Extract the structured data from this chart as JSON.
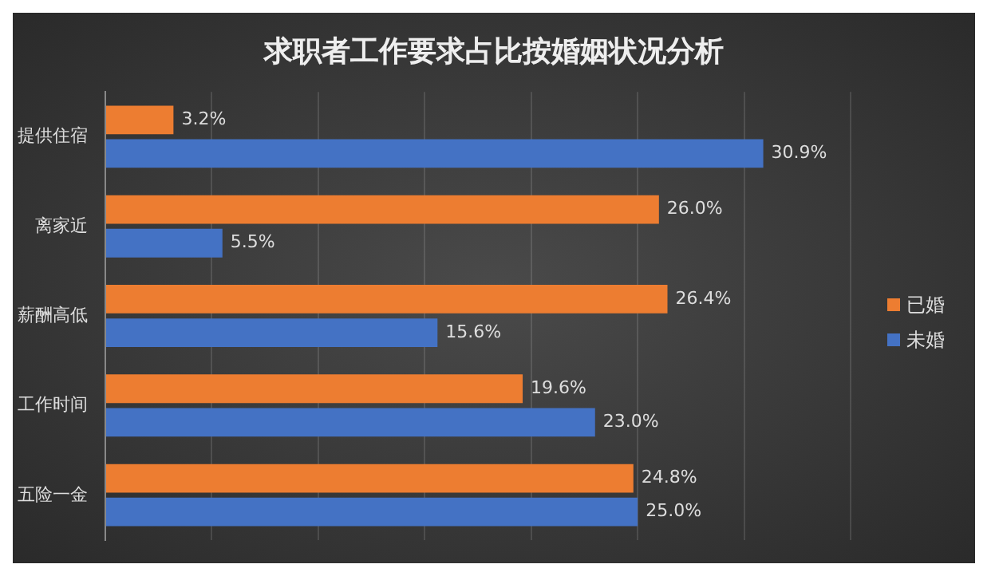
{
  "chart_data": {
    "type": "bar",
    "orientation": "horizontal",
    "title": "求职者工作要求占比按婚姻状况分析",
    "categories": [
      "提供住宿",
      "离家近",
      "薪酬高低",
      "工作时间",
      "五险一金"
    ],
    "series": [
      {
        "name": "已婚",
        "color": "#ed7d31",
        "values": [
          3.2,
          26.0,
          26.4,
          19.6,
          24.8
        ],
        "value_labels": [
          "3.2%",
          "26.0%",
          "26.4%",
          "19.6%",
          "24.8%"
        ]
      },
      {
        "name": "未婚",
        "color": "#4472c4",
        "values": [
          30.9,
          5.5,
          15.6,
          23.0,
          25.0
        ],
        "value_labels": [
          "30.9%",
          "5.5%",
          "15.6%",
          "23.0%",
          "25.0%"
        ]
      }
    ],
    "xlim": [
      0,
      35
    ],
    "xticks": [
      {
        "value": 0,
        "label": null
      },
      {
        "value": 5,
        "label": null
      },
      {
        "value": 10,
        "label": null
      },
      {
        "value": 15,
        "label": null
      },
      {
        "value": 20,
        "label": null
      },
      {
        "value": 25,
        "label": null
      },
      {
        "value": 30,
        "label": null
      },
      {
        "value": 35,
        "label": null
      }
    ],
    "tick_labels": "y",
    "grid": "x",
    "legend": "right"
  }
}
